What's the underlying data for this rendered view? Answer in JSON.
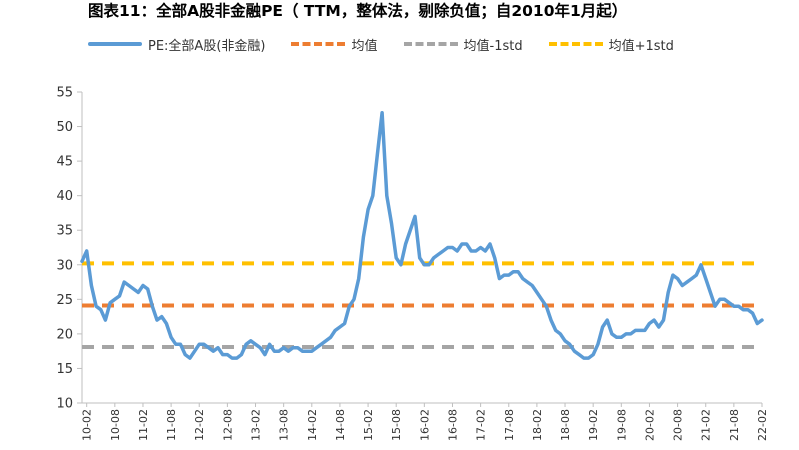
{
  "chart_data": {
    "type": "line",
    "title": "图表11：全部A股非金融PE（ TTM，整体法，剔除负值；自2010年1月起）",
    "ylim": [
      10,
      55
    ],
    "yticks": [
      10,
      15,
      20,
      25,
      30,
      35,
      40,
      45,
      50,
      55
    ],
    "x_tick_labels": [
      "2010-02",
      "2010-08",
      "2011-02",
      "2011-08",
      "2012-02",
      "2012-08",
      "2013-02",
      "2013-08",
      "2014-02",
      "2014-08",
      "2015-02",
      "2015-08",
      "2016-02",
      "2016-08",
      "2017-02",
      "2017-08",
      "2018-02",
      "2018-08",
      "2019-02",
      "2019-08",
      "2020-02",
      "2020-08",
      "2021-02",
      "2021-08",
      "2022-02"
    ],
    "x_tick_display": [
      "10-02",
      "10-08",
      "11-02",
      "11-08",
      "12-02",
      "12-08",
      "13-02",
      "13-08",
      "14-02",
      "14-08",
      "15-02",
      "15-08",
      "16-02",
      "16-08",
      "17-02",
      "17-08",
      "18-02",
      "18-08",
      "19-02",
      "19-08",
      "20-02",
      "20-08",
      "21-02",
      "21-08",
      "22-02"
    ],
    "legend_position": "top",
    "grid": false,
    "series": [
      {
        "name": "PE:全部A股(非金融)",
        "color": "#5b9bd5",
        "style": "solid",
        "x": [
          "2010-01",
          "2010-02",
          "2010-03",
          "2010-04",
          "2010-05",
          "2010-06",
          "2010-07",
          "2010-08",
          "2010-09",
          "2010-10",
          "2010-11",
          "2010-12",
          "2011-01",
          "2011-02",
          "2011-03",
          "2011-04",
          "2011-05",
          "2011-06",
          "2011-07",
          "2011-08",
          "2011-09",
          "2011-10",
          "2011-11",
          "2011-12",
          "2012-01",
          "2012-02",
          "2012-03",
          "2012-04",
          "2012-05",
          "2012-06",
          "2012-07",
          "2012-08",
          "2012-09",
          "2012-10",
          "2012-11",
          "2012-12",
          "2013-01",
          "2013-02",
          "2013-03",
          "2013-04",
          "2013-05",
          "2013-06",
          "2013-07",
          "2013-08",
          "2013-09",
          "2013-10",
          "2013-11",
          "2013-12",
          "2014-01",
          "2014-02",
          "2014-03",
          "2014-04",
          "2014-05",
          "2014-06",
          "2014-07",
          "2014-08",
          "2014-09",
          "2014-10",
          "2014-11",
          "2014-12",
          "2015-01",
          "2015-02",
          "2015-03",
          "2015-04",
          "2015-05",
          "2015-06",
          "2015-07",
          "2015-08",
          "2015-09",
          "2015-10",
          "2015-11",
          "2015-12",
          "2016-01",
          "2016-02",
          "2016-03",
          "2016-04",
          "2016-05",
          "2016-06",
          "2016-07",
          "2016-08",
          "2016-09",
          "2016-10",
          "2016-11",
          "2016-12",
          "2017-01",
          "2017-02",
          "2017-03",
          "2017-04",
          "2017-05",
          "2017-06",
          "2017-07",
          "2017-08",
          "2017-09",
          "2017-10",
          "2017-11",
          "2017-12",
          "2018-01",
          "2018-02",
          "2018-03",
          "2018-04",
          "2018-05",
          "2018-06",
          "2018-07",
          "2018-08",
          "2018-09",
          "2018-10",
          "2018-11",
          "2018-12",
          "2019-01",
          "2019-02",
          "2019-03",
          "2019-04",
          "2019-05",
          "2019-06",
          "2019-07",
          "2019-08",
          "2019-09",
          "2019-10",
          "2019-11",
          "2019-12",
          "2020-01",
          "2020-02",
          "2020-03",
          "2020-04",
          "2020-05",
          "2020-06",
          "2020-07",
          "2020-08",
          "2020-09",
          "2020-10",
          "2020-11",
          "2020-12",
          "2021-01",
          "2021-02",
          "2021-03",
          "2021-04",
          "2021-05",
          "2021-06",
          "2021-07",
          "2021-08",
          "2021-09",
          "2021-10",
          "2021-11",
          "2021-12",
          "2022-01",
          "2022-02"
        ],
        "values": [
          30.5,
          32,
          27,
          24,
          23.5,
          22,
          24.5,
          25,
          25.5,
          27.5,
          27,
          26.5,
          26,
          27,
          26.5,
          24,
          22,
          22.5,
          21.5,
          19.5,
          18.5,
          18.5,
          17,
          16.5,
          17.5,
          18.5,
          18.5,
          18,
          17.5,
          18,
          17,
          17,
          16.5,
          16.5,
          17,
          18.5,
          19,
          18.5,
          18,
          17,
          18.5,
          17.5,
          17.5,
          18,
          17.5,
          18,
          18,
          17.5,
          17.5,
          17.5,
          18,
          18.5,
          19,
          19.5,
          20.5,
          21,
          21.5,
          24,
          25,
          28,
          34,
          38,
          40,
          46,
          52,
          40,
          36,
          31,
          30,
          33,
          35,
          37,
          31,
          30,
          30,
          31,
          31.5,
          32,
          32.5,
          32.5,
          32,
          33,
          33,
          32,
          32,
          32.5,
          32,
          33,
          31,
          28,
          28.5,
          28.5,
          29,
          29,
          28,
          27.5,
          27,
          26,
          25,
          24,
          22,
          20.5,
          20,
          19,
          18.5,
          17.5,
          17,
          16.5,
          16.5,
          17,
          18.5,
          21,
          22,
          20,
          19.5,
          19.5,
          20,
          20,
          20.5,
          20.5,
          20.5,
          21.5,
          22,
          21,
          22,
          26,
          28.5,
          28,
          27,
          27.5,
          28,
          28.5,
          30,
          28,
          26,
          24,
          25,
          25,
          24.5,
          24,
          24,
          23.5,
          23.5,
          23,
          21.5,
          22
        ]
      },
      {
        "name": "均值",
        "color": "#ed7d31",
        "style": "dashed",
        "value": 24.1
      },
      {
        "name": "均值-1std",
        "color": "#a5a5a5",
        "style": "dashed",
        "value": 18.1
      },
      {
        "name": "均值+1std",
        "color": "#ffc000",
        "style": "dashed",
        "value": 30.2
      }
    ]
  }
}
